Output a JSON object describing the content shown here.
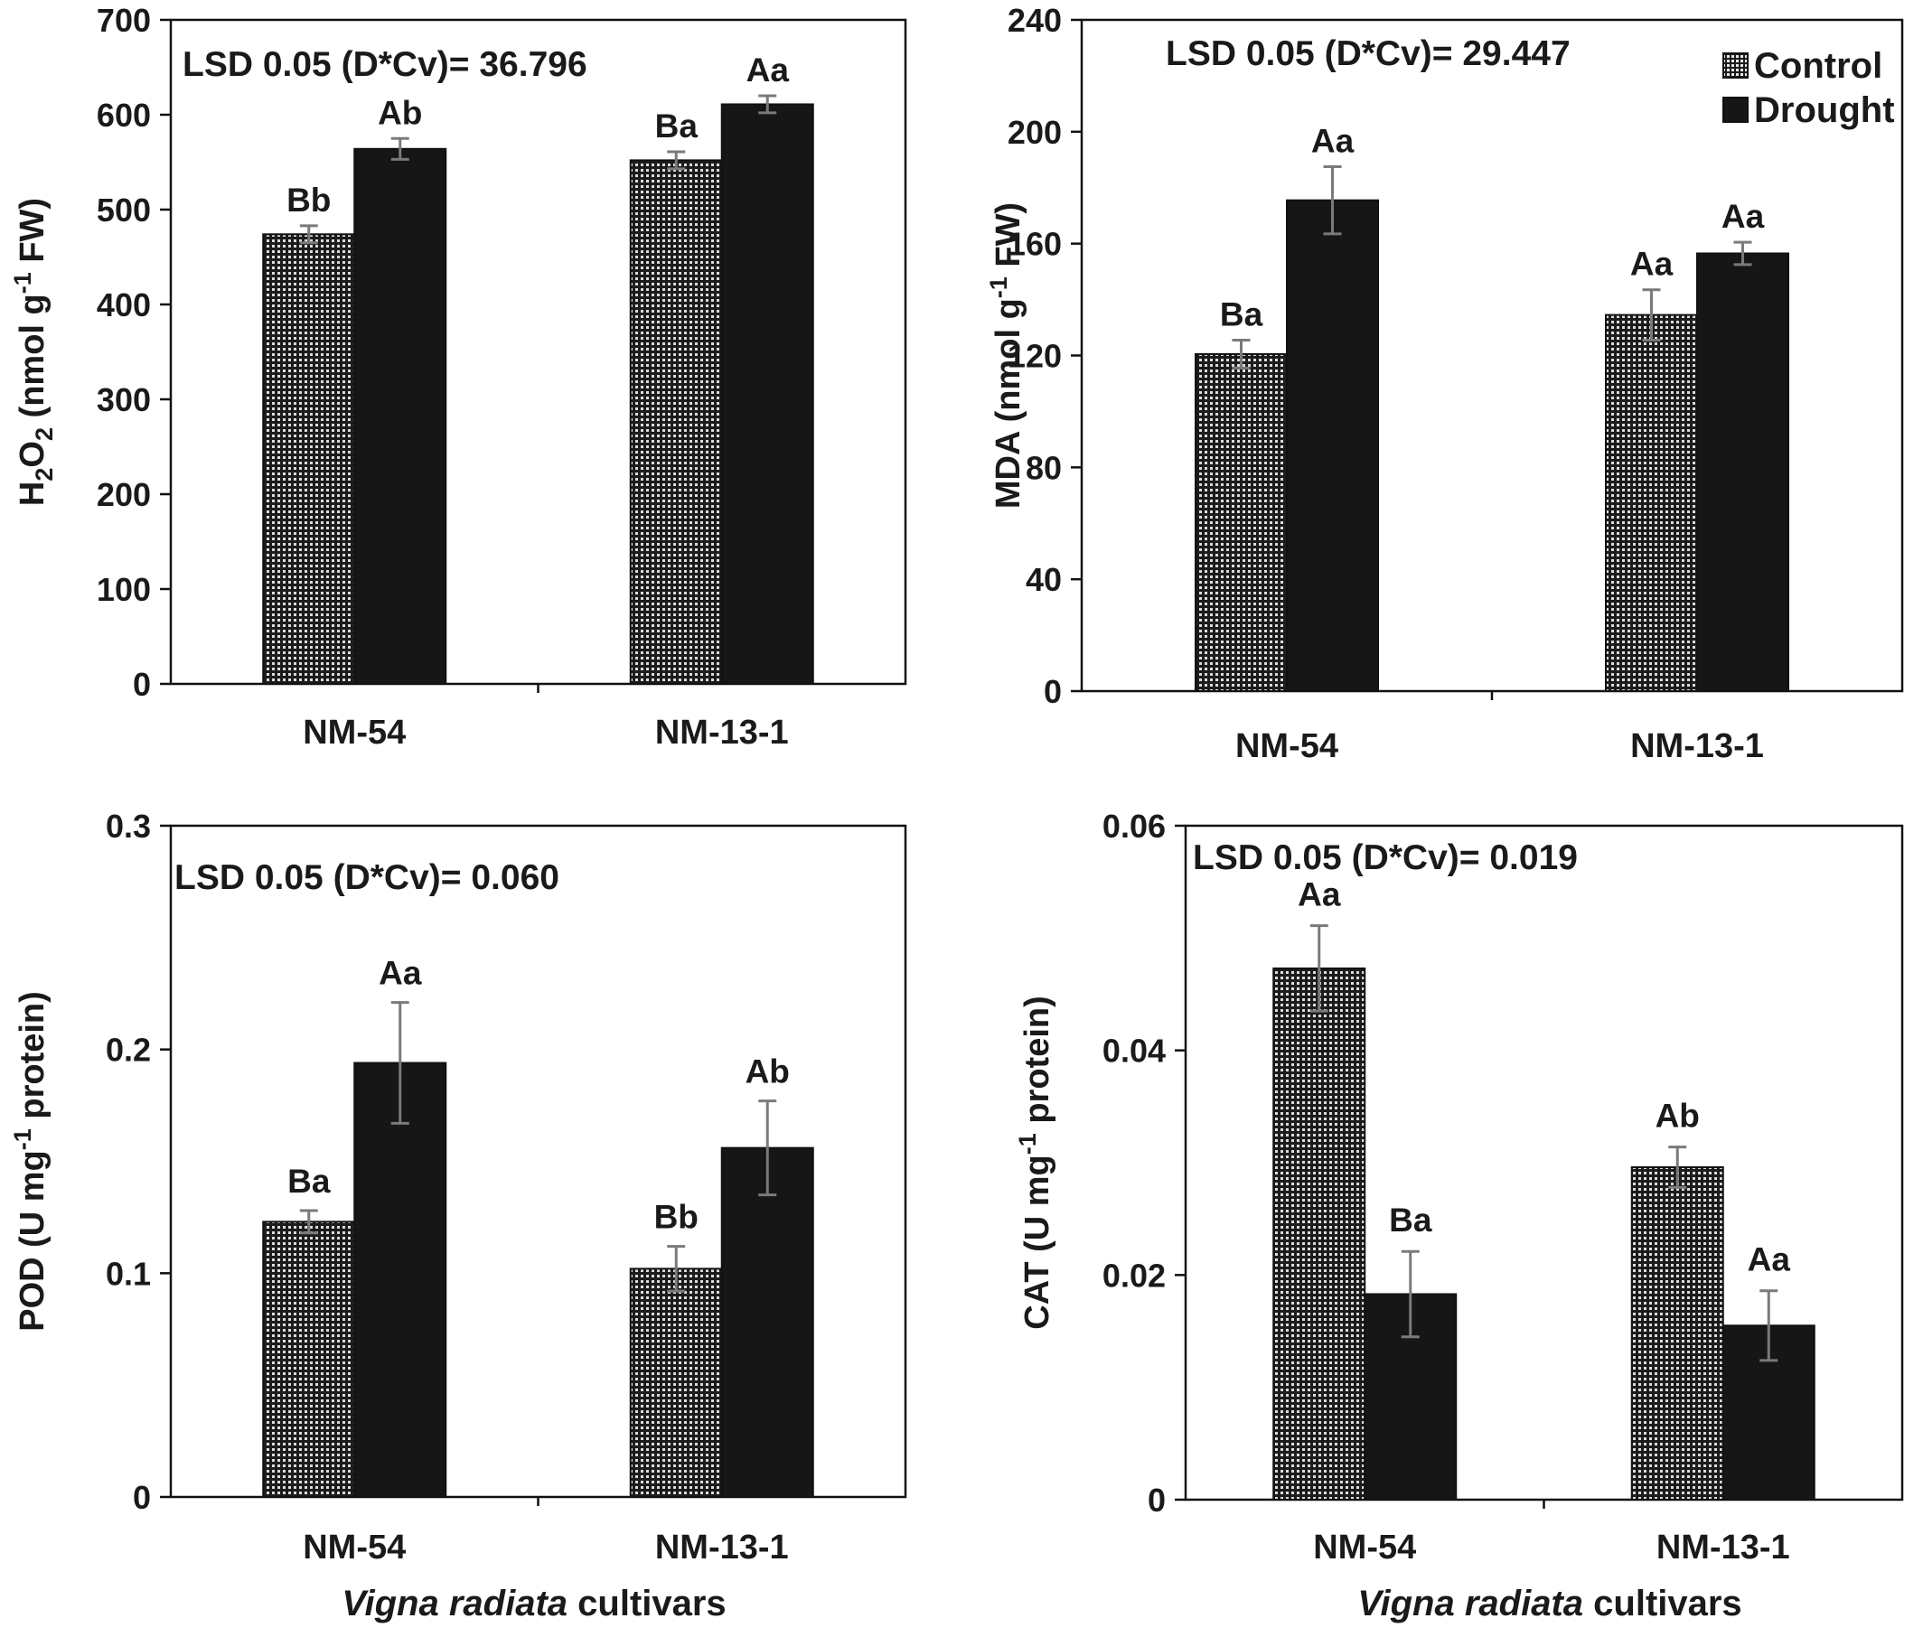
{
  "figure": {
    "xlabel_italic": "Vigna radiata",
    "xlabel_rest": " cultivars",
    "colors": {
      "control_dots": "#dcdcdc",
      "control_base": "#1c1c1c",
      "drought": "#161616",
      "error_bar": "#7a7a7a"
    },
    "legend": {
      "control": "Control",
      "drought": "Drought",
      "placement": "top-right of panel MDA"
    }
  },
  "chart_data": [
    {
      "id": "h2o2",
      "type": "bar",
      "categories": [
        "NM-54",
        "NM-13-1"
      ],
      "series": [
        {
          "name": "Control",
          "values": [
            474,
            552
          ],
          "errors": [
            9,
            9
          ],
          "labels": [
            "Bb",
            "Ba"
          ]
        },
        {
          "name": "Drought",
          "values": [
            564,
            611
          ],
          "errors": [
            11,
            9
          ],
          "labels": [
            "Ab",
            "Aa"
          ]
        }
      ],
      "ylim": [
        0,
        700
      ],
      "yticks": [
        "0",
        "100",
        "200",
        "300",
        "400",
        "500",
        "600",
        "700"
      ],
      "ylabel": "H2O2 (nmol g-1 FW)",
      "ylabel_parts": [
        "H",
        "2",
        "O",
        "2",
        " (nmol g",
        "-1",
        " FW)"
      ],
      "annotation": "LSD 0.05 (D*Cv)= 36.796",
      "legend": false,
      "grid": false
    },
    {
      "id": "mda",
      "type": "bar",
      "categories": [
        "NM-54",
        "NM-13-1"
      ],
      "series": [
        {
          "name": "Control",
          "values": [
            120.5,
            134.5
          ],
          "errors": [
            5,
            9
          ],
          "labels": [
            "Ba",
            "Aa"
          ]
        },
        {
          "name": "Drought",
          "values": [
            175.5,
            156.5
          ],
          "errors": [
            12,
            4
          ],
          "labels": [
            "Aa",
            "Aa"
          ]
        }
      ],
      "ylim": [
        0,
        240
      ],
      "yticks": [
        "0",
        "40",
        "80",
        "120",
        "160",
        "200",
        "240"
      ],
      "ylabel": "MDA (nmol g-1 FW)",
      "ylabel_parts": [
        "MDA (nmol g",
        "-1",
        " FW)"
      ],
      "annotation": "LSD 0.05 (D*Cv)= 29.447",
      "legend": true,
      "grid": false
    },
    {
      "id": "pod",
      "type": "bar",
      "categories": [
        "NM-54",
        "NM-13-1"
      ],
      "series": [
        {
          "name": "Control",
          "values": [
            0.123,
            0.102
          ],
          "errors": [
            0.005,
            0.01
          ],
          "labels": [
            "Ba",
            "Bb"
          ]
        },
        {
          "name": "Drought",
          "values": [
            0.194,
            0.156
          ],
          "errors": [
            0.027,
            0.021
          ],
          "labels": [
            "Aa",
            "Ab"
          ]
        }
      ],
      "ylim": [
        0,
        0.3
      ],
      "yticks": [
        "0",
        "0.1",
        "0.2",
        "0.3"
      ],
      "ylabel": "POD (U mg-1 protein)",
      "ylabel_parts": [
        "POD (U mg",
        "-1",
        " protein)"
      ],
      "annotation": "LSD 0.05 (D*Cv)= 0.060",
      "legend": false,
      "grid": false
    },
    {
      "id": "cat",
      "type": "bar",
      "categories": [
        "NM-54",
        "NM-13-1"
      ],
      "series": [
        {
          "name": "Control",
          "values": [
            0.0473,
            0.0296
          ],
          "errors": [
            0.0038,
            0.0018
          ],
          "labels": [
            "Aa",
            "Ab"
          ]
        },
        {
          "name": "Drought",
          "values": [
            0.0183,
            0.0155
          ],
          "errors": [
            0.0038,
            0.0031
          ],
          "labels": [
            "Ba",
            "Aa"
          ]
        }
      ],
      "ylim": [
        0,
        0.06
      ],
      "yticks": [
        "0",
        "0.02",
        "0.04",
        "0.06"
      ],
      "ylabel": "CAT (U mg-1 protein)",
      "ylabel_parts": [
        "CAT (U mg",
        "-1",
        " protein)"
      ],
      "annotation": "LSD 0.05 (D*Cv)= 0.019",
      "legend": false,
      "grid": false
    }
  ]
}
